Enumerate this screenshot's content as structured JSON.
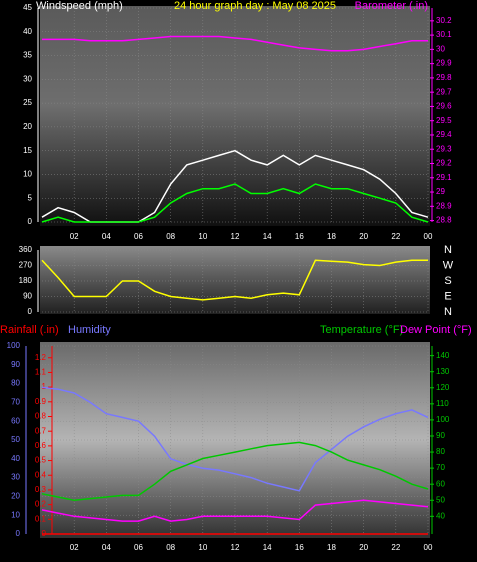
{
  "chart_data": [
    {
      "type": "line",
      "title": "24 hour graph day : May 08 2025",
      "y_label": "Windspeed (mph)",
      "y2_label": "Barometer (.in)",
      "x": [
        0,
        1,
        2,
        3,
        4,
        5,
        6,
        7,
        8,
        9,
        10,
        11,
        12,
        13,
        14,
        15,
        16,
        17,
        18,
        19,
        20,
        21,
        22,
        23,
        24
      ],
      "xlim": [
        0,
        24
      ],
      "xticks": [
        {
          "value": 2,
          "label": "02"
        },
        {
          "value": 4,
          "label": "04"
        },
        {
          "value": 6,
          "label": "06"
        },
        {
          "value": 8,
          "label": "08"
        },
        10,
        12,
        14,
        16,
        18,
        20,
        22,
        {
          "value": 24,
          "label": "00"
        }
      ],
      "ylim": [
        0,
        45
      ],
      "yticks": [
        0,
        5,
        10,
        15,
        20,
        25,
        30,
        35,
        40,
        45
      ],
      "y2lim": [
        28.79,
        30.29
      ],
      "y2ticks": [
        {
          "value": 28.8,
          "label": "28.8"
        },
        28.9,
        29,
        29.1,
        29.2,
        29.3,
        29.4,
        29.5,
        29.6,
        29.7,
        29.8,
        29.9,
        30,
        30.1,
        30.2
      ],
      "grid": true,
      "series": [
        {
          "color": "#ffffff",
          "values": [
            1,
            3,
            2,
            0,
            0,
            0,
            0,
            2,
            8,
            12,
            13,
            14,
            15,
            13,
            12,
            14,
            12,
            14,
            13,
            12,
            11,
            9,
            6,
            2,
            1
          ]
        },
        {
          "color": "#00ff00",
          "values": [
            0,
            1,
            0,
            0,
            0,
            0,
            0,
            1,
            4,
            6,
            7,
            7,
            8,
            6,
            6,
            7,
            6,
            8,
            7,
            7,
            6,
            5,
            4,
            1,
            0
          ]
        },
        {
          "color": "#ff00ff",
          "axis": "y2",
          "values": [
            30.07,
            30.07,
            30.07,
            30.06,
            30.06,
            30.06,
            30.07,
            30.08,
            30.09,
            30.09,
            30.09,
            30.09,
            30.08,
            30.07,
            30.05,
            30.03,
            30.01,
            30,
            29.99,
            29.99,
            30,
            30.02,
            30.04,
            30.06,
            30.06
          ]
        }
      ]
    },
    {
      "type": "line",
      "x": [
        0,
        1,
        2,
        3,
        4,
        5,
        6,
        7,
        8,
        9,
        10,
        11,
        12,
        13,
        14,
        15,
        16,
        17,
        18,
        19,
        20,
        21,
        22,
        23,
        24
      ],
      "xlim": [
        0,
        24
      ],
      "xticks": [
        {
          "value": 2,
          "label": "02"
        },
        {
          "value": 4,
          "label": "04"
        },
        {
          "value": 6,
          "label": "06"
        },
        {
          "value": 8,
          "label": "08"
        },
        10,
        12,
        14,
        16,
        18,
        20,
        22,
        {
          "value": 24,
          "label": "00"
        }
      ],
      "ylim": [
        0,
        360
      ],
      "yticks": [
        360,
        270,
        180,
        90,
        0
      ],
      "y2_tick_labels": [
        "N",
        "W",
        "S",
        "E",
        "N"
      ],
      "grid": true,
      "series": [
        {
          "color": "#ffff00",
          "values": [
            300,
            200,
            90,
            90,
            90,
            180,
            180,
            120,
            90,
            80,
            70,
            80,
            90,
            80,
            100,
            110,
            100,
            300,
            295,
            290,
            275,
            270,
            290,
            300,
            300
          ]
        }
      ]
    },
    {
      "type": "line",
      "x": [
        0,
        1,
        2,
        3,
        4,
        5,
        6,
        7,
        8,
        9,
        10,
        11,
        12,
        13,
        14,
        15,
        16,
        17,
        18,
        19,
        20,
        21,
        22,
        23,
        24
      ],
      "xlim": [
        0,
        24
      ],
      "xticks": [
        {
          "value": 2,
          "label": "02"
        },
        {
          "value": 4,
          "label": "04"
        },
        {
          "value": 6,
          "label": "06"
        },
        {
          "value": 8,
          "label": "08"
        },
        10,
        12,
        14,
        16,
        18,
        20,
        22,
        {
          "value": 24,
          "label": "00"
        }
      ],
      "ylim": [
        0,
        100
      ],
      "yticks": [
        0,
        10,
        20,
        30,
        40,
        50,
        60,
        70,
        80,
        90,
        100
      ],
      "y2lim": [
        29,
        146
      ],
      "y2ticks": [
        40,
        50,
        60,
        70,
        80,
        90,
        100,
        110,
        120,
        130,
        140
      ],
      "y3lim": [
        0,
        1.28
      ],
      "y3ticks": [
        0,
        0.1,
        0.2,
        0.3,
        0.4,
        0.5,
        0.6,
        0.7,
        0.8,
        0.9,
        1,
        1.1,
        1.2
      ],
      "grid": true,
      "series": [
        {
          "name": "Rainfall (.in)",
          "color": "#ff0000",
          "axis": "y3",
          "values": [
            0,
            0,
            0,
            0,
            0,
            0,
            0,
            0,
            0,
            0,
            0,
            0,
            0,
            0,
            0,
            0,
            0,
            0,
            0,
            0,
            0,
            0,
            0,
            0,
            0
          ]
        },
        {
          "name": "Humidity",
          "color": "#7878ff",
          "values": [
            78,
            77,
            75,
            70,
            64,
            62,
            60,
            52,
            40,
            37,
            35,
            34,
            32,
            30,
            27,
            25,
            23,
            38,
            45,
            52,
            57,
            61,
            64,
            66,
            62
          ]
        },
        {
          "name": "Temperature (°F)",
          "color": "#00c800",
          "axis": "y2",
          "values": [
            54,
            52,
            50,
            51,
            52,
            53,
            53,
            60,
            68,
            72,
            76,
            78,
            80,
            82,
            84,
            85,
            86,
            84,
            80,
            75,
            72,
            69,
            65,
            60,
            57
          ]
        },
        {
          "name": "Dew Point (°F)",
          "color": "#ff00ff",
          "axis": "y2",
          "values": [
            44,
            42,
            40,
            39,
            38,
            37,
            37,
            40,
            37,
            38,
            40,
            40,
            40,
            40,
            40,
            39,
            38,
            47,
            48,
            49,
            50,
            49,
            48,
            47,
            46
          ]
        }
      ]
    }
  ]
}
